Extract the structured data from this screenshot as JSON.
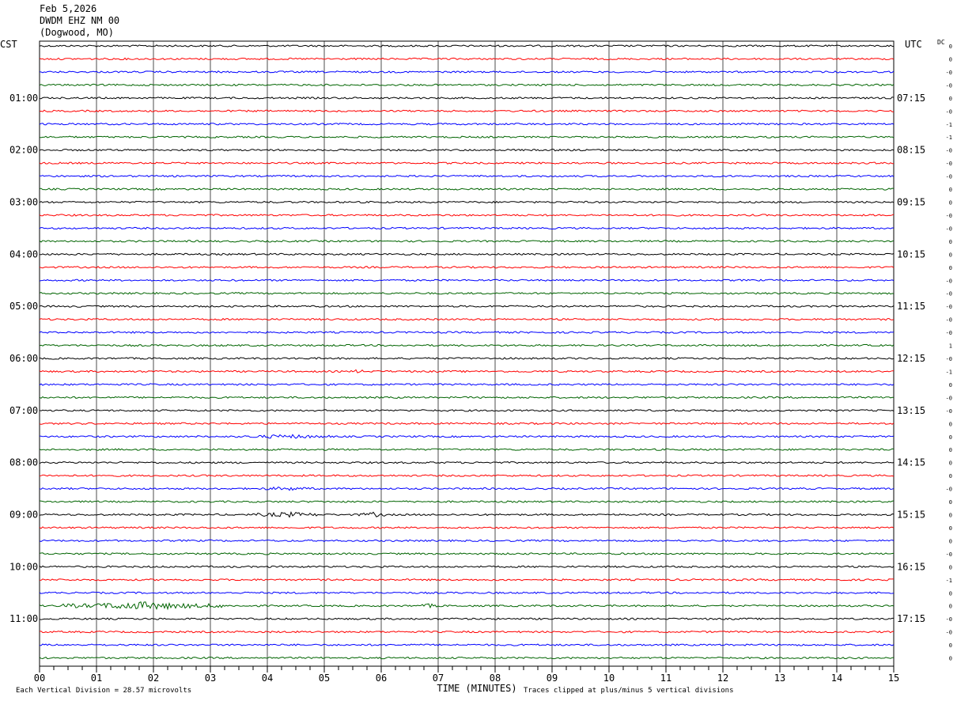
{
  "header": {
    "date": "Feb 5,2026",
    "station": "DWDM EHZ NM 00",
    "location": "(Dogwood, MO)"
  },
  "chart_data": {
    "type": "line",
    "left_axis_label": "CST",
    "right_axis_label": "UTC",
    "dc_label": "DC",
    "xlabel": "TIME (MINUTES)",
    "x_ticks": [
      "00",
      "01",
      "02",
      "03",
      "04",
      "05",
      "06",
      "07",
      "08",
      "09",
      "10",
      "11",
      "12",
      "13",
      "14",
      "15"
    ],
    "xlim": [
      0,
      15
    ],
    "rows_per_hour": 4,
    "row_count": 48,
    "row_colors": [
      "#000000",
      "#ff0000",
      "#0000ff",
      "#006400"
    ],
    "left_hour_labels": [
      "01:00",
      "02:00",
      "03:00",
      "04:00",
      "05:00",
      "06:00",
      "07:00",
      "08:00",
      "09:00",
      "10:00",
      "11:00"
    ],
    "right_hour_labels": [
      "07:15",
      "08:15",
      "09:15",
      "10:15",
      "11:15",
      "12:15",
      "13:15",
      "14:15",
      "15:15",
      "16:15",
      "17:15"
    ],
    "dc_offsets": [
      "0",
      "0",
      "-0",
      "-0",
      "0",
      "-0",
      "-1",
      "-1",
      "-0",
      "-0",
      "-0",
      "0",
      "0",
      "-0",
      "-0",
      "0",
      "0",
      "0",
      "-0",
      "-0",
      "-0",
      "-0",
      "-0",
      "1",
      "-0",
      "-1",
      "0",
      "-0",
      "-0",
      "0",
      "0",
      "0",
      "0",
      "0",
      "-0",
      "0",
      "0",
      "0",
      "0",
      "-0",
      "0",
      "-1",
      "0",
      "0",
      "-0",
      "-0",
      "0",
      "0"
    ],
    "events": [
      {
        "row": 36,
        "x_min": [
          3.8,
          4.9
        ],
        "amplitude": 2.5
      },
      {
        "row": 36,
        "x_min": [
          5.6,
          6.1
        ],
        "amplitude": 2.3
      },
      {
        "row": 34,
        "x_min": [
          3.9,
          4.8
        ],
        "amplitude": 1.6
      },
      {
        "row": 30,
        "x_min": [
          3.6,
          5.1
        ],
        "amplitude": 1.7
      },
      {
        "row": 43,
        "x_min": [
          0.4,
          3.2
        ],
        "amplitude": 4.2
      },
      {
        "row": 43,
        "x_min": [
          6.7,
          7.0
        ],
        "amplitude": 1.8
      },
      {
        "row": 25,
        "x_min": [
          5.5,
          5.7
        ],
        "amplitude": 2.0
      }
    ],
    "footer_left": "Each Vertical Division =   28.57 microvolts",
    "footer_right": "Traces clipped at plus/minus 5 vertical divisions"
  }
}
